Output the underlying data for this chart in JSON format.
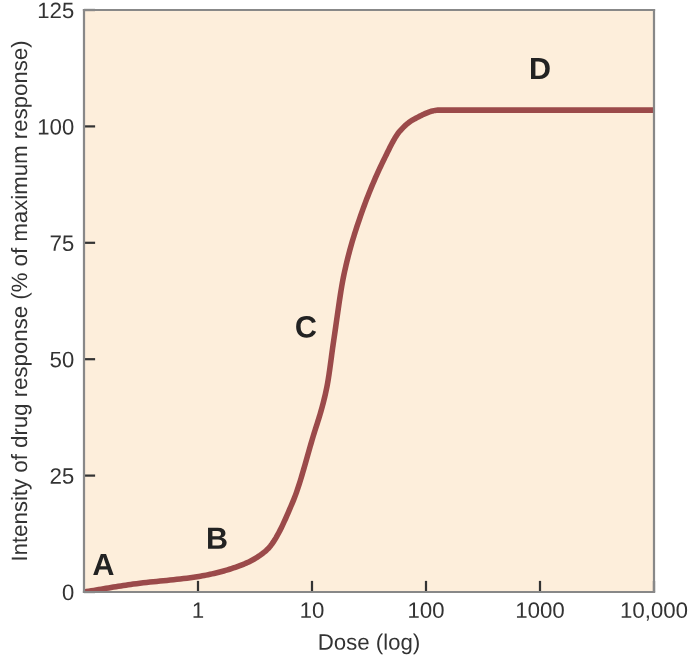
{
  "chart_data": {
    "type": "line",
    "xlabel": "Dose (log)",
    "ylabel": "Intensity of drug response (% of maximum response)",
    "x": [
      0.1,
      0.27,
      1.05,
      2.3,
      4,
      6.9,
      10,
      13.5,
      15.5,
      19,
      26,
      43,
      59,
      78,
      130,
      1000,
      10000
    ],
    "series": [
      {
        "color": "#9b4a4a",
        "values": [
          0,
          1.7,
          3.4,
          5.6,
          9,
          19.8,
          32.6,
          44,
          54,
          68,
          80,
          93,
          99,
          101.5,
          103.5,
          103.5,
          103.5
        ]
      }
    ],
    "log": "x",
    "xlim": [
      0.1,
      10000
    ],
    "xticks": [
      1,
      10,
      100,
      1000,
      {
        "value": 10000,
        "label": "10,000"
      }
    ],
    "ylim": [
      0,
      125
    ],
    "yticks": [
      0,
      25,
      50,
      75,
      100,
      125
    ],
    "grid": false,
    "marker": "none",
    "line_style": "solid",
    "annotations": [
      {
        "text": "A",
        "x": 0.1,
        "y": 0
      },
      {
        "text": "B",
        "x": 2.3,
        "y": 5.6
      },
      {
        "text": "C",
        "x": 15.5,
        "y": 54
      },
      {
        "text": "D",
        "x": 1000,
        "y": 103.5
      }
    ]
  }
}
